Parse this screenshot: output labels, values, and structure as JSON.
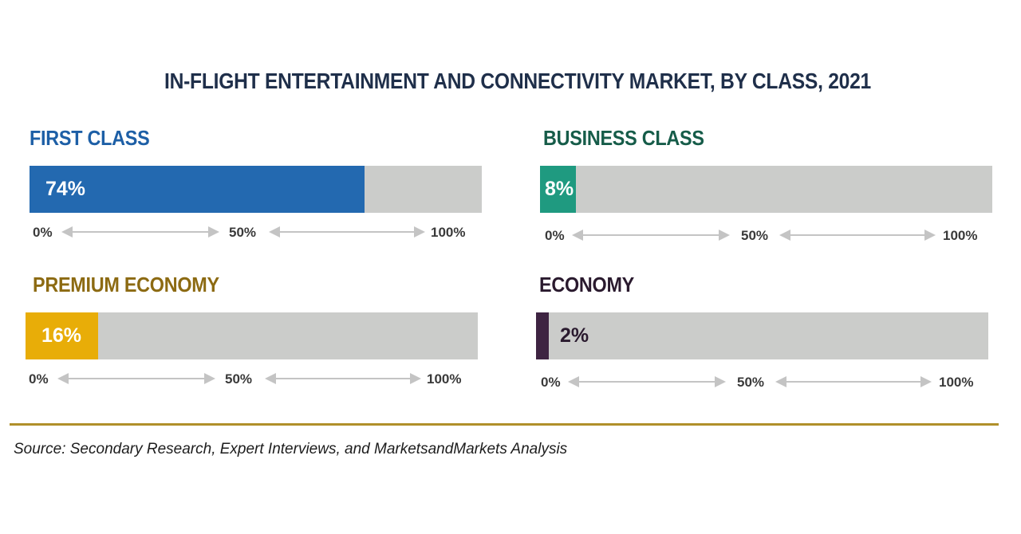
{
  "chart_data": {
    "type": "bar",
    "title": "IN-FLIGHT ENTERTAINMENT AND CONNECTIVITY MARKET, BY CLASS, 2021",
    "source": "Source: Secondary Research, Expert Interviews, and MarketsandMarkets Analysis",
    "axis_ticks": [
      "0%",
      "50%",
      "100%"
    ],
    "xlim": [
      0,
      100
    ],
    "panels": [
      {
        "label": "FIRST CLASS",
        "value": 74,
        "display": "74%",
        "color": "#2369b0",
        "label_color": "#1d5fa6",
        "text_color": "#ffffff"
      },
      {
        "label": "BUSINESS CLASS",
        "value": 8,
        "display": "8%",
        "color": "#1f9a80",
        "label_color": "#165c49",
        "text_color": "#ffffff"
      },
      {
        "label": "PREMIUM ECONOMY",
        "value": 16,
        "display": "16%",
        "color": "#e8ad08",
        "label_color": "#8c6a12",
        "text_color": "#ffffff"
      },
      {
        "label": "ECONOMY",
        "value": 2,
        "display": "2%",
        "color": "#3e2442",
        "label_color": "#2a1a2e",
        "text_color": "#2a1a2e"
      }
    ]
  }
}
